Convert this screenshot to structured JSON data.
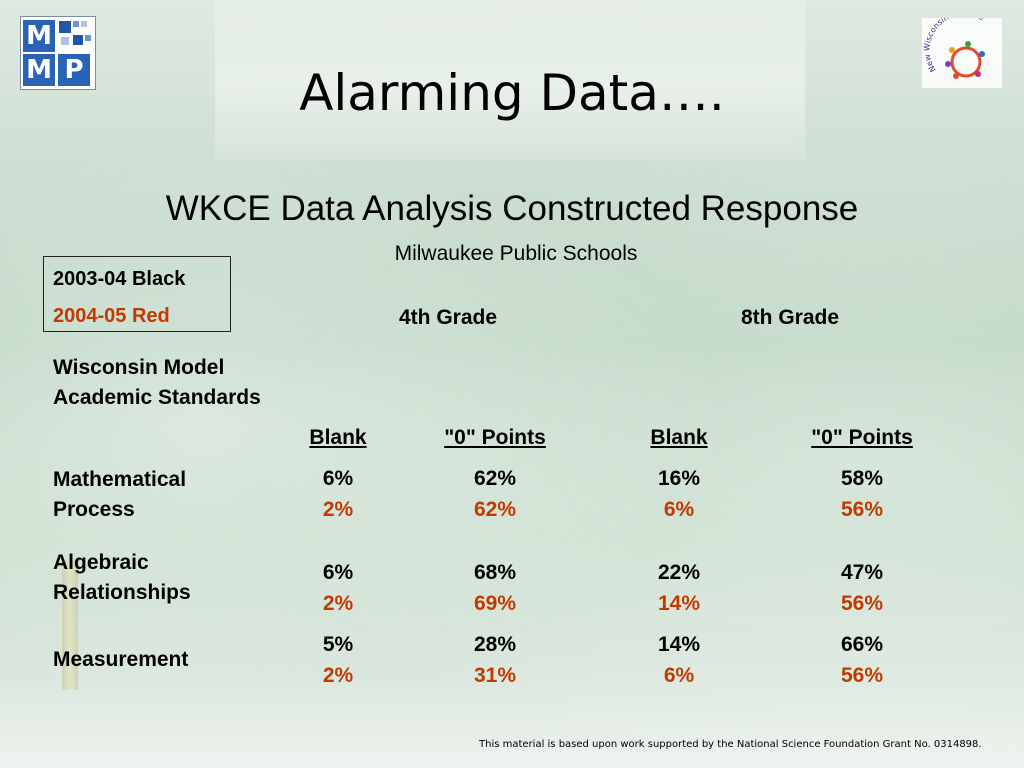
{
  "title": "Alarming Data….",
  "subtitle": "WKCE Data Analysis Constructed Response",
  "district": "Milwaukee Public Schools",
  "legend": {
    "black": "2003-04 Black",
    "red": "2004-05 Red"
  },
  "colors": {
    "red": "#c33a00",
    "black": "#000000"
  },
  "grades": [
    "4th Grade",
    "8th Grade"
  ],
  "standards_label": "Wisconsin Model Academic Standards",
  "columns": [
    "Blank",
    "\"0\" Points",
    "Blank",
    "\"0\" Points"
  ],
  "rows": [
    {
      "label": "Mathematical Process",
      "y2003": [
        "6%",
        "62%",
        "16%",
        "58%"
      ],
      "y2004": [
        "2%",
        "62%",
        "6%",
        "56%"
      ]
    },
    {
      "label": "Algebraic Relationships",
      "y2003": [
        "6%",
        "68%",
        "22%",
        "47%"
      ],
      "y2004": [
        "2%",
        "69%",
        "14%",
        "56%"
      ]
    },
    {
      "label": "Measurement",
      "y2003": [
        "5%",
        "28%",
        "14%",
        "66%"
      ],
      "y2004": [
        "2%",
        "31%",
        "6%",
        "56%"
      ]
    }
  ],
  "footnote": "This material is based upon work supported by the National Science Foundation Grant No. 0314898.",
  "logos": {
    "left": "MMP",
    "right": "New Wisconsin Promise"
  }
}
